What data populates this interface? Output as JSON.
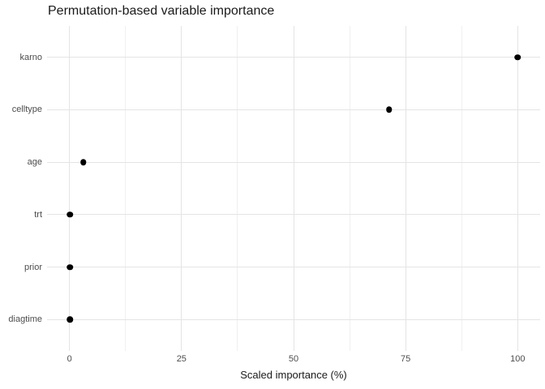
{
  "chart_data": {
    "type": "scatter",
    "title": "Permutation-based variable importance",
    "xlabel": "Scaled importance (%)",
    "ylabel": "",
    "categories": [
      "karno",
      "celltype",
      "age",
      "trt",
      "prior",
      "diagtime"
    ],
    "values": [
      100,
      71.3,
      3.1,
      0.1,
      0.1,
      0.1
    ],
    "xlim": [
      0,
      100
    ],
    "x_ticks": [
      0,
      25,
      50,
      75,
      100
    ],
    "x_minor_ticks": [
      12.5,
      37.5,
      62.5,
      87.5
    ],
    "grid": true,
    "legend": "none",
    "colors": {
      "point": "#000000",
      "grid_major": "#e4e4e4",
      "grid_minor": "#f0f0f0",
      "axis_text": "#4d4d4d",
      "title_text": "#1a1a1a",
      "background": "#ffffff"
    }
  }
}
